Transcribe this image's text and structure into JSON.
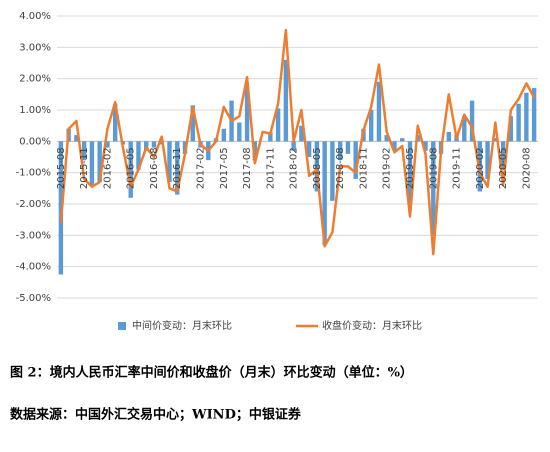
{
  "chart_data": {
    "type": "bar-line",
    "categories": [
      "2015-08",
      null,
      null,
      "2015-11",
      null,
      null,
      "2016-02",
      null,
      null,
      "2016-05",
      null,
      null,
      "2016-08",
      null,
      null,
      "2016-11",
      null,
      null,
      "2017-02",
      null,
      null,
      "2017-05",
      null,
      null,
      "2017-08",
      null,
      null,
      "2017-11",
      null,
      null,
      "2018-02",
      null,
      null,
      "2018-05",
      null,
      null,
      "2018-08",
      null,
      null,
      "2018-11",
      null,
      null,
      "2019-02",
      null,
      null,
      "2019-05",
      null,
      null,
      "2019-08",
      null,
      null,
      "2019-11",
      null,
      null,
      "2020-02",
      null,
      null,
      "2020-05",
      null,
      null,
      "2020-08",
      null
    ],
    "series": [
      {
        "name": "中间价变动：月末环比",
        "color": "#5b9bd5",
        "type": "bar",
        "values": [
          -4.25,
          0.4,
          0.2,
          -0.6,
          -1.4,
          -1.3,
          -0.2,
          1.2,
          -0.1,
          -1.8,
          -0.9,
          -0.3,
          -0.2,
          -0.1,
          -1.3,
          -1.7,
          -0.4,
          1.15,
          -0.2,
          -0.6,
          0.1,
          0.4,
          1.3,
          0.6,
          1.75,
          -0.6,
          0.0,
          0.3,
          1.05,
          2.6,
          -0.3,
          0.5,
          -0.5,
          -1.6,
          -3.3,
          -1.9,
          -0.6,
          -0.4,
          -1.2,
          0.4,
          1.0,
          1.9,
          0.2,
          -0.3,
          0.1,
          -2.0,
          0.2,
          -0.3,
          -3.0,
          -0.4,
          0.3,
          0.2,
          0.8,
          1.3,
          -1.6,
          -1.2,
          0.1,
          -0.9,
          0.8,
          1.2,
          1.55,
          1.7
        ]
      },
      {
        "name": "收盘价变动：月末环比",
        "color": "#ed7d31",
        "type": "line",
        "values": [
          -2.6,
          0.4,
          0.65,
          -1.2,
          -1.45,
          -1.3,
          0.4,
          1.25,
          -0.2,
          -1.45,
          -0.9,
          -0.2,
          -0.5,
          0.15,
          -1.5,
          -1.6,
          -0.4,
          1.1,
          -0.1,
          -0.3,
          0.0,
          1.1,
          0.65,
          0.8,
          2.05,
          -0.7,
          0.3,
          0.25,
          1.2,
          3.55,
          0.0,
          1.0,
          -1.1,
          -0.9,
          -3.35,
          -2.9,
          -0.8,
          -0.8,
          -1.0,
          0.35,
          1.1,
          2.45,
          0.3,
          -0.35,
          -0.15,
          -2.4,
          0.5,
          -0.4,
          -3.6,
          -0.3,
          1.5,
          0.1,
          0.85,
          0.45,
          -1.0,
          -1.45,
          0.6,
          -1.4,
          1.0,
          1.35,
          1.85,
          1.4
        ]
      }
    ],
    "ylim": [
      -5,
      4
    ],
    "yticks": [
      {
        "value": -5,
        "label": "-5.00%"
      },
      {
        "value": -4,
        "label": "-4.00%"
      },
      {
        "value": -3,
        "label": "-3.00%"
      },
      {
        "value": -2,
        "label": "-2.00%"
      },
      {
        "value": -1,
        "label": "-1.00%"
      },
      {
        "value": 0,
        "label": "0.00%"
      },
      {
        "value": 1,
        "label": "1.00%"
      },
      {
        "value": 2,
        "label": "2.00%"
      },
      {
        "value": 3,
        "label": "3.00%"
      },
      {
        "value": 4,
        "label": "4.00%"
      }
    ],
    "grid": true,
    "legend": "bottom"
  },
  "caption": "图 2：境内人民币汇率中间价和收盘价（月末）环比变动（单位：%）",
  "source": "数据来源：中国外汇交易中心；WIND；中银证券"
}
